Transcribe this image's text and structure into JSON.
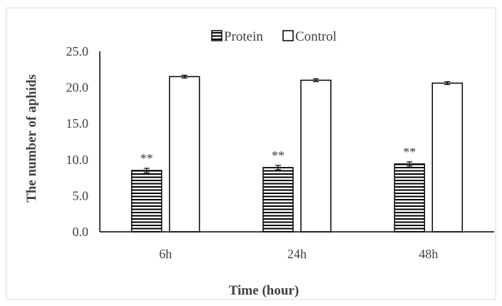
{
  "chart_data": {
    "type": "bar",
    "title": "",
    "xlabel": "Time (hour)",
    "ylabel": "The number of aphids",
    "categories": [
      "6h",
      "24h",
      "48h"
    ],
    "ylim": [
      0,
      25
    ],
    "yticks": [
      "0.0",
      "5.0",
      "10.0",
      "15.0",
      "20.0",
      "25.0"
    ],
    "series": [
      {
        "name": "Protein",
        "pattern": "horizontal-stripes",
        "values": [
          8.5,
          8.9,
          9.4
        ],
        "errors": [
          0.3,
          0.3,
          0.3
        ],
        "annotations": [
          "**",
          "**",
          "**"
        ]
      },
      {
        "name": "Control",
        "pattern": "solid-white",
        "values": [
          21.5,
          21.0,
          20.6
        ],
        "errors": [
          0.2,
          0.2,
          0.2
        ],
        "annotations": [
          "",
          "",
          ""
        ]
      }
    ],
    "legend_position": "top-center",
    "grid": false,
    "colors": {
      "bar_stroke": "#000000",
      "stripe": "#000000",
      "fill": "#ffffff",
      "text": "#404040"
    }
  }
}
